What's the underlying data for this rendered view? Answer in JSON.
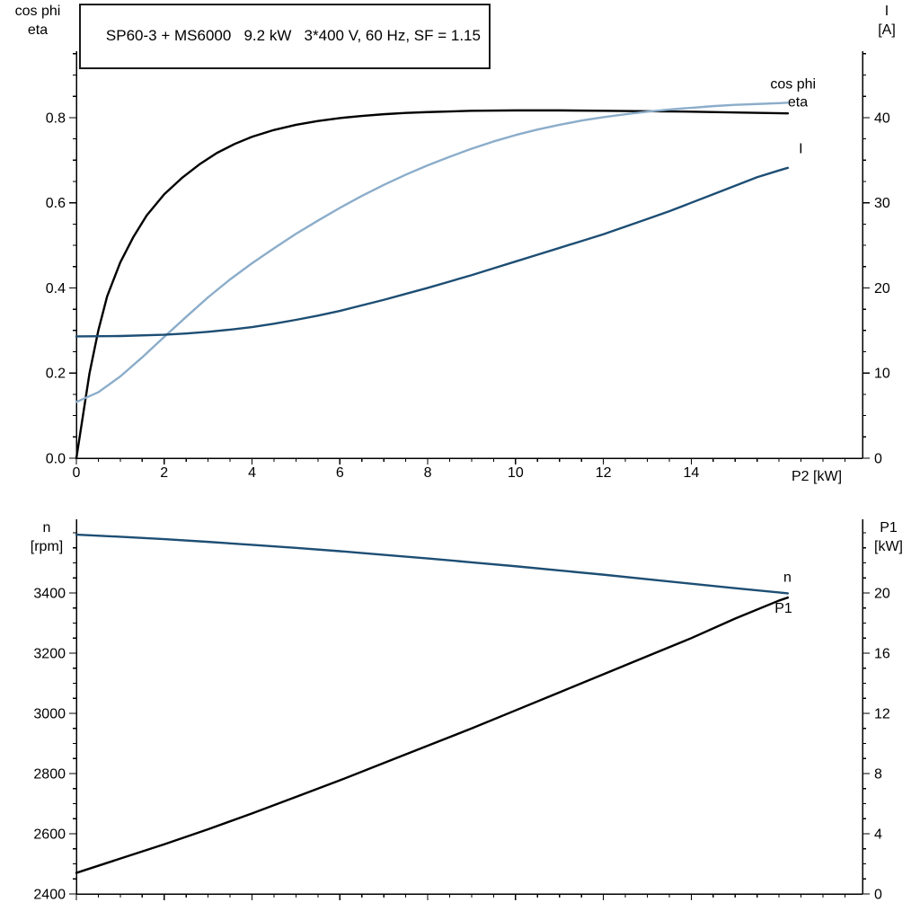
{
  "title_box": {
    "text": "SP60-3 + MS6000   9.2 kW   3*400 V, 60 Hz, SF = 1.15"
  },
  "colors": {
    "black": "#000000",
    "dark_blue": "#1d4e74",
    "light_blue": "#8badca",
    "axis": "#000000",
    "background": "#ffffff"
  },
  "chart_data": [
    {
      "id": "motor-electrical",
      "type": "line",
      "x_axis": {
        "label": "P2 [kW]",
        "min": 0,
        "max": 17.9,
        "major_ticks": [
          0,
          2,
          4,
          6,
          8,
          10,
          12,
          14
        ],
        "major_labels": [
          "0",
          "2",
          "4",
          "6",
          "8",
          "10",
          "12",
          "14"
        ],
        "minor_step": 0.5
      },
      "left_axis": {
        "title_lines": [
          "cos phi",
          "eta"
        ],
        "min": 0,
        "max": 0.956,
        "major_ticks": [
          0,
          0.2,
          0.4,
          0.6,
          0.8
        ],
        "major_labels": [
          "0.0",
          "0.2",
          "0.4",
          "0.6",
          "0.8"
        ],
        "minor_step": 0.05
      },
      "right_axis": {
        "title_lines": [
          "I",
          "[A]"
        ],
        "min": 0,
        "max": 47.8,
        "major_ticks": [
          0,
          10,
          20,
          30,
          40
        ],
        "major_labels": [
          "0",
          "10",
          "20",
          "30",
          "40"
        ],
        "minor_step": 2.5
      },
      "series": [
        {
          "name": "eta",
          "axis": "left",
          "color": "#000000",
          "label": {
            "text": "eta",
            "x": 16.2,
            "y": 0.826
          },
          "points": [
            [
              0,
              0
            ],
            [
              0.15,
              0.1
            ],
            [
              0.3,
              0.2
            ],
            [
              0.5,
              0.3
            ],
            [
              0.7,
              0.38
            ],
            [
              1,
              0.46
            ],
            [
              1.3,
              0.52
            ],
            [
              1.6,
              0.57
            ],
            [
              2,
              0.62
            ],
            [
              2.4,
              0.658
            ],
            [
              2.8,
              0.69
            ],
            [
              3.2,
              0.717
            ],
            [
              3.6,
              0.738
            ],
            [
              4,
              0.755
            ],
            [
              4.5,
              0.771
            ],
            [
              5,
              0.783
            ],
            [
              5.5,
              0.792
            ],
            [
              6,
              0.799
            ],
            [
              6.5,
              0.804
            ],
            [
              7,
              0.808
            ],
            [
              7.5,
              0.811
            ],
            [
              8,
              0.813
            ],
            [
              9,
              0.816
            ],
            [
              10,
              0.817
            ],
            [
              11,
              0.817
            ],
            [
              12,
              0.816
            ],
            [
              13,
              0.815
            ],
            [
              14,
              0.814
            ],
            [
              15,
              0.812
            ],
            [
              16.2,
              0.81
            ]
          ]
        },
        {
          "name": "cos phi",
          "axis": "left",
          "color": "#8badca",
          "label": {
            "text": "cos phi",
            "x": 15.8,
            "y": 0.868
          },
          "points": [
            [
              0,
              0.132
            ],
            [
              0.5,
              0.155
            ],
            [
              1,
              0.192
            ],
            [
              1.5,
              0.237
            ],
            [
              2,
              0.285
            ],
            [
              2.5,
              0.332
            ],
            [
              3,
              0.378
            ],
            [
              3.5,
              0.42
            ],
            [
              4,
              0.458
            ],
            [
              4.5,
              0.493
            ],
            [
              5,
              0.527
            ],
            [
              5.5,
              0.558
            ],
            [
              6,
              0.588
            ],
            [
              6.5,
              0.616
            ],
            [
              7,
              0.642
            ],
            [
              7.5,
              0.666
            ],
            [
              8,
              0.688
            ],
            [
              8.5,
              0.708
            ],
            [
              9,
              0.727
            ],
            [
              9.5,
              0.744
            ],
            [
              10,
              0.759
            ],
            [
              10.5,
              0.772
            ],
            [
              11,
              0.783
            ],
            [
              11.5,
              0.793
            ],
            [
              12,
              0.801
            ],
            [
              12.5,
              0.808
            ],
            [
              13,
              0.814
            ],
            [
              13.5,
              0.819
            ],
            [
              14,
              0.823
            ],
            [
              14.5,
              0.827
            ],
            [
              15,
              0.83
            ],
            [
              15.5,
              0.832
            ],
            [
              16,
              0.834
            ],
            [
              16.2,
              0.835
            ]
          ]
        },
        {
          "name": "I",
          "axis": "right",
          "color": "#1d4e74",
          "label": {
            "text": "I",
            "x": 16.45,
            "y": 35.8
          },
          "points": [
            [
              0,
              14.3
            ],
            [
              1,
              14.35
            ],
            [
              2,
              14.5
            ],
            [
              2.5,
              14.65
            ],
            [
              3,
              14.85
            ],
            [
              3.5,
              15.1
            ],
            [
              4,
              15.4
            ],
            [
              4.5,
              15.8
            ],
            [
              5,
              16.25
            ],
            [
              5.5,
              16.75
            ],
            [
              6,
              17.3
            ],
            [
              6.5,
              17.95
            ],
            [
              7,
              18.6
            ],
            [
              7.5,
              19.3
            ],
            [
              8,
              20.0
            ],
            [
              8.5,
              20.75
            ],
            [
              9,
              21.5
            ],
            [
              9.5,
              22.3
            ],
            [
              10,
              23.1
            ],
            [
              10.5,
              23.9
            ],
            [
              11,
              24.7
            ],
            [
              11.5,
              25.5
            ],
            [
              12,
              26.3
            ],
            [
              12.5,
              27.2
            ],
            [
              13,
              28.1
            ],
            [
              13.5,
              29.0
            ],
            [
              14,
              30.0
            ],
            [
              14.5,
              31.0
            ],
            [
              15,
              32.0
            ],
            [
              15.5,
              33.0
            ],
            [
              16,
              33.8
            ],
            [
              16.2,
              34.1
            ]
          ]
        }
      ]
    },
    {
      "id": "speed-power",
      "type": "line",
      "x_axis": {
        "label": "",
        "min": 0,
        "max": 17.9,
        "major_ticks": [
          0,
          2,
          4,
          6,
          8,
          10,
          12,
          14
        ],
        "major_labels": [],
        "minor_step": 0.5
      },
      "left_axis": {
        "title_lines": [
          "n",
          "[rpm]"
        ],
        "min": 2400,
        "max": 3645,
        "major_ticks": [
          2400,
          2600,
          2800,
          3000,
          3200,
          3400
        ],
        "major_labels": [
          "2400",
          "2600",
          "2800",
          "3000",
          "3200",
          "3400"
        ],
        "minor_step": 50
      },
      "right_axis": {
        "title_lines": [
          "P1",
          "[kW]"
        ],
        "min": 0,
        "max": 24.9,
        "major_ticks": [
          0,
          4,
          8,
          12,
          16,
          20
        ],
        "major_labels": [
          "0",
          "4",
          "8",
          "12",
          "16",
          "20"
        ],
        "minor_step": 1
      },
      "series": [
        {
          "name": "n",
          "axis": "left",
          "color": "#1d4e74",
          "label": {
            "text": "n",
            "x": 16.1,
            "y": 3438
          },
          "points": [
            [
              0,
              3594
            ],
            [
              1,
              3587
            ],
            [
              2,
              3579
            ],
            [
              3,
              3570
            ],
            [
              4,
              3560
            ],
            [
              5,
              3550
            ],
            [
              6,
              3539
            ],
            [
              7,
              3527
            ],
            [
              8,
              3515
            ],
            [
              9,
              3502
            ],
            [
              10,
              3489
            ],
            [
              11,
              3475
            ],
            [
              12,
              3461
            ],
            [
              13,
              3446
            ],
            [
              14,
              3431
            ],
            [
              15,
              3416
            ],
            [
              16,
              3402
            ],
            [
              16.2,
              3399
            ]
          ]
        },
        {
          "name": "P1",
          "axis": "right",
          "color": "#000000",
          "label": {
            "text": "P1",
            "x": 15.9,
            "y": 18.7
          },
          "points": [
            [
              0,
              1.4
            ],
            [
              1,
              2.35
            ],
            [
              2,
              3.3
            ],
            [
              3,
              4.3
            ],
            [
              4,
              5.35
            ],
            [
              5,
              6.45
            ],
            [
              6,
              7.55
            ],
            [
              7,
              8.7
            ],
            [
              8,
              9.85
            ],
            [
              9,
              11.0
            ],
            [
              10,
              12.2
            ],
            [
              11,
              13.4
            ],
            [
              12,
              14.6
            ],
            [
              13,
              15.8
            ],
            [
              14,
              17.0
            ],
            [
              15,
              18.3
            ],
            [
              16,
              19.5
            ],
            [
              16.2,
              19.7
            ]
          ]
        }
      ]
    }
  ]
}
